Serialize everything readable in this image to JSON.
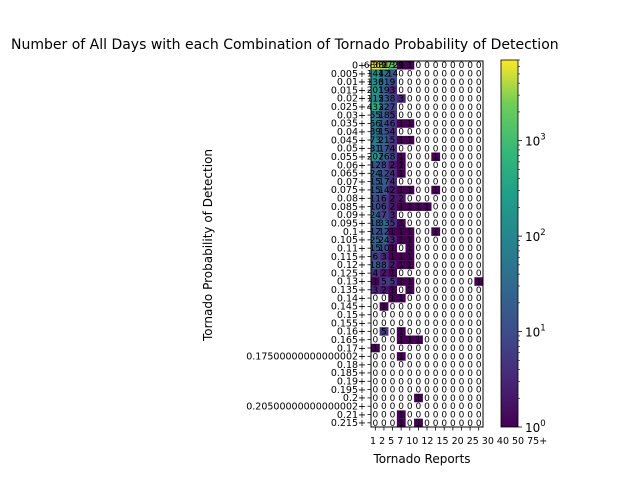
{
  "chart_data": {
    "type": "heatmap",
    "title": "Number of All Days with each Combination of Tornado Probability of Detection",
    "xlabel": "Tornado Reports",
    "ylabel": "Tornado Probability of Detection",
    "x_categories": [
      "1",
      "2",
      "5",
      "7",
      "10",
      "12",
      "15",
      "20",
      "25",
      "30",
      "40",
      "50",
      "75+"
    ],
    "x_tick_text": "1 2 5 7 10 12 15 20 25 30 40 50 75+",
    "y_categories": [
      "0+",
      "0.005+",
      "0.01+",
      "0.015+",
      "0.02+",
      "0.025+",
      "0.03+",
      "0.035+",
      "0.04+",
      "0.045+",
      "0.05+",
      "0.055+",
      "0.06+",
      "0.065+",
      "0.07+",
      "0.075+",
      "0.08+",
      "0.085+",
      "0.09+",
      "0.095+",
      "0.1+",
      "0.105+",
      "0.11+",
      "0.115+",
      "0.12+",
      "0.125+",
      "0.13+",
      "0.135+",
      "0.14+",
      "0.145+",
      "0.15+",
      "0.155+",
      "0.16+",
      "0.165+",
      "0.17+",
      "0.17500000000000002+",
      "0.18+",
      "0.185+",
      "0.19+",
      "0.195+",
      "0.2+",
      "0.20500000000000002+",
      "0.21+",
      "0.215+"
    ],
    "colorbar": {
      "scale": "log",
      "range": [
        1,
        7000
      ],
      "colormap": "viridis",
      "ticks": [
        {
          "base": "10",
          "exp": "0",
          "value": 1
        },
        {
          "base": "10",
          "exp": "1",
          "value": 10
        },
        {
          "base": "10",
          "exp": "2",
          "value": 100
        },
        {
          "base": "10",
          "exp": "3",
          "value": 1000
        }
      ]
    },
    "values": [
      [
        6869,
        3813,
        1729,
        1,
        1,
        0,
        0,
        0,
        0,
        0,
        0,
        0,
        0
      ],
      [
        141,
        42,
        14,
        0,
        0,
        0,
        0,
        0,
        0,
        0,
        0,
        0,
        0
      ],
      [
        136,
        31,
        9,
        0,
        0,
        0,
        0,
        0,
        0,
        0,
        0,
        0,
        0
      ],
      [
        201,
        19,
        3,
        0,
        0,
        0,
        0,
        0,
        0,
        0,
        0,
        0,
        0
      ],
      [
        115,
        23,
        8,
        3,
        0,
        0,
        0,
        0,
        0,
        0,
        0,
        0,
        0
      ],
      [
        433,
        22,
        7,
        0,
        0,
        0,
        0,
        0,
        0,
        0,
        0,
        0,
        0
      ],
      [
        55,
        18,
        5,
        0,
        0,
        0,
        0,
        0,
        0,
        0,
        0,
        0,
        0
      ],
      [
        56,
        14,
        6,
        1,
        1,
        0,
        0,
        0,
        0,
        0,
        0,
        0,
        0
      ],
      [
        39,
        15,
        4,
        0,
        0,
        0,
        0,
        0,
        0,
        0,
        0,
        0,
        0
      ],
      [
        73,
        21,
        5,
        1,
        1,
        0,
        0,
        0,
        0,
        0,
        0,
        0,
        0
      ],
      [
        31,
        17,
        4,
        0,
        0,
        0,
        0,
        0,
        0,
        0,
        0,
        0,
        0
      ],
      [
        207,
        26,
        8,
        1,
        0,
        0,
        0,
        1,
        0,
        0,
        0,
        0,
        0
      ],
      [
        12,
        8,
        2,
        1,
        0,
        0,
        0,
        0,
        0,
        0,
        0,
        0,
        0
      ],
      [
        24,
        12,
        4,
        1,
        0,
        0,
        0,
        0,
        0,
        0,
        0,
        0,
        0
      ],
      [
        15,
        17,
        4,
        0,
        0,
        0,
        0,
        0,
        0,
        0,
        0,
        0,
        0
      ],
      [
        15,
        14,
        2,
        1,
        1,
        0,
        0,
        1,
        0,
        0,
        0,
        0,
        0
      ],
      [
        11,
        6,
        2,
        2,
        0,
        0,
        0,
        0,
        0,
        0,
        0,
        0,
        0
      ],
      [
        10,
        6,
        2,
        1,
        1,
        1,
        1,
        0,
        0,
        0,
        0,
        0,
        0
      ],
      [
        24,
        7,
        3,
        0,
        0,
        0,
        0,
        0,
        0,
        0,
        0,
        0,
        0
      ],
      [
        18,
        33,
        5,
        1,
        0,
        0,
        0,
        0,
        0,
        0,
        0,
        0,
        0
      ],
      [
        12,
        12,
        1,
        1,
        1,
        0,
        0,
        1,
        0,
        0,
        0,
        0,
        0
      ],
      [
        25,
        24,
        3,
        1,
        1,
        0,
        0,
        0,
        0,
        0,
        0,
        0,
        0
      ],
      [
        15,
        10,
        1,
        0,
        1,
        0,
        0,
        0,
        0,
        0,
        0,
        0,
        0
      ],
      [
        6,
        3,
        1,
        1,
        1,
        0,
        0,
        0,
        0,
        0,
        0,
        0,
        0
      ],
      [
        18,
        8,
        2,
        1,
        1,
        0,
        0,
        0,
        0,
        0,
        0,
        0,
        0
      ],
      [
        4,
        2,
        1,
        0,
        0,
        0,
        0,
        0,
        0,
        0,
        0,
        0,
        0
      ],
      [
        1,
        5,
        5,
        1,
        1,
        0,
        0,
        0,
        0,
        0,
        0,
        0,
        1
      ],
      [
        3,
        2,
        1,
        0,
        1,
        0,
        0,
        0,
        0,
        0,
        0,
        0,
        0
      ],
      [
        0,
        0,
        1,
        1,
        0,
        0,
        0,
        0,
        0,
        0,
        0,
        0,
        0
      ],
      [
        0,
        1,
        0,
        0,
        0,
        0,
        0,
        0,
        0,
        0,
        0,
        0,
        0
      ],
      [
        0,
        0,
        0,
        0,
        0,
        0,
        0,
        0,
        0,
        0,
        0,
        0,
        0
      ],
      [
        0,
        0,
        0,
        0,
        0,
        0,
        0,
        0,
        0,
        0,
        0,
        0,
        0
      ],
      [
        0,
        5,
        0,
        1,
        0,
        0,
        0,
        0,
        0,
        0,
        0,
        0,
        0
      ],
      [
        0,
        0,
        0,
        1,
        1,
        1,
        0,
        0,
        0,
        0,
        0,
        0,
        0
      ],
      [
        1,
        0,
        0,
        0,
        0,
        0,
        0,
        0,
        0,
        0,
        0,
        0,
        0
      ],
      [
        0,
        0,
        0,
        1,
        0,
        0,
        0,
        0,
        0,
        0,
        0,
        0,
        0
      ],
      [
        0,
        0,
        0,
        0,
        0,
        0,
        0,
        0,
        0,
        0,
        0,
        0,
        0
      ],
      [
        0,
        0,
        0,
        0,
        0,
        0,
        0,
        0,
        0,
        0,
        0,
        0,
        0
      ],
      [
        0,
        0,
        0,
        0,
        0,
        0,
        0,
        0,
        0,
        0,
        0,
        0,
        0
      ],
      [
        0,
        0,
        0,
        0,
        0,
        0,
        0,
        0,
        0,
        0,
        0,
        0,
        0
      ],
      [
        0,
        0,
        0,
        0,
        0,
        1,
        0,
        0,
        0,
        0,
        0,
        0,
        0
      ],
      [
        0,
        0,
        0,
        0,
        0,
        0,
        0,
        0,
        0,
        0,
        0,
        0,
        0
      ],
      [
        0,
        0,
        0,
        1,
        0,
        0,
        0,
        0,
        0,
        0,
        0,
        0,
        0
      ],
      [
        0,
        0,
        0,
        1,
        0,
        1,
        0,
        0,
        0,
        0,
        0,
        0,
        0
      ]
    ]
  }
}
